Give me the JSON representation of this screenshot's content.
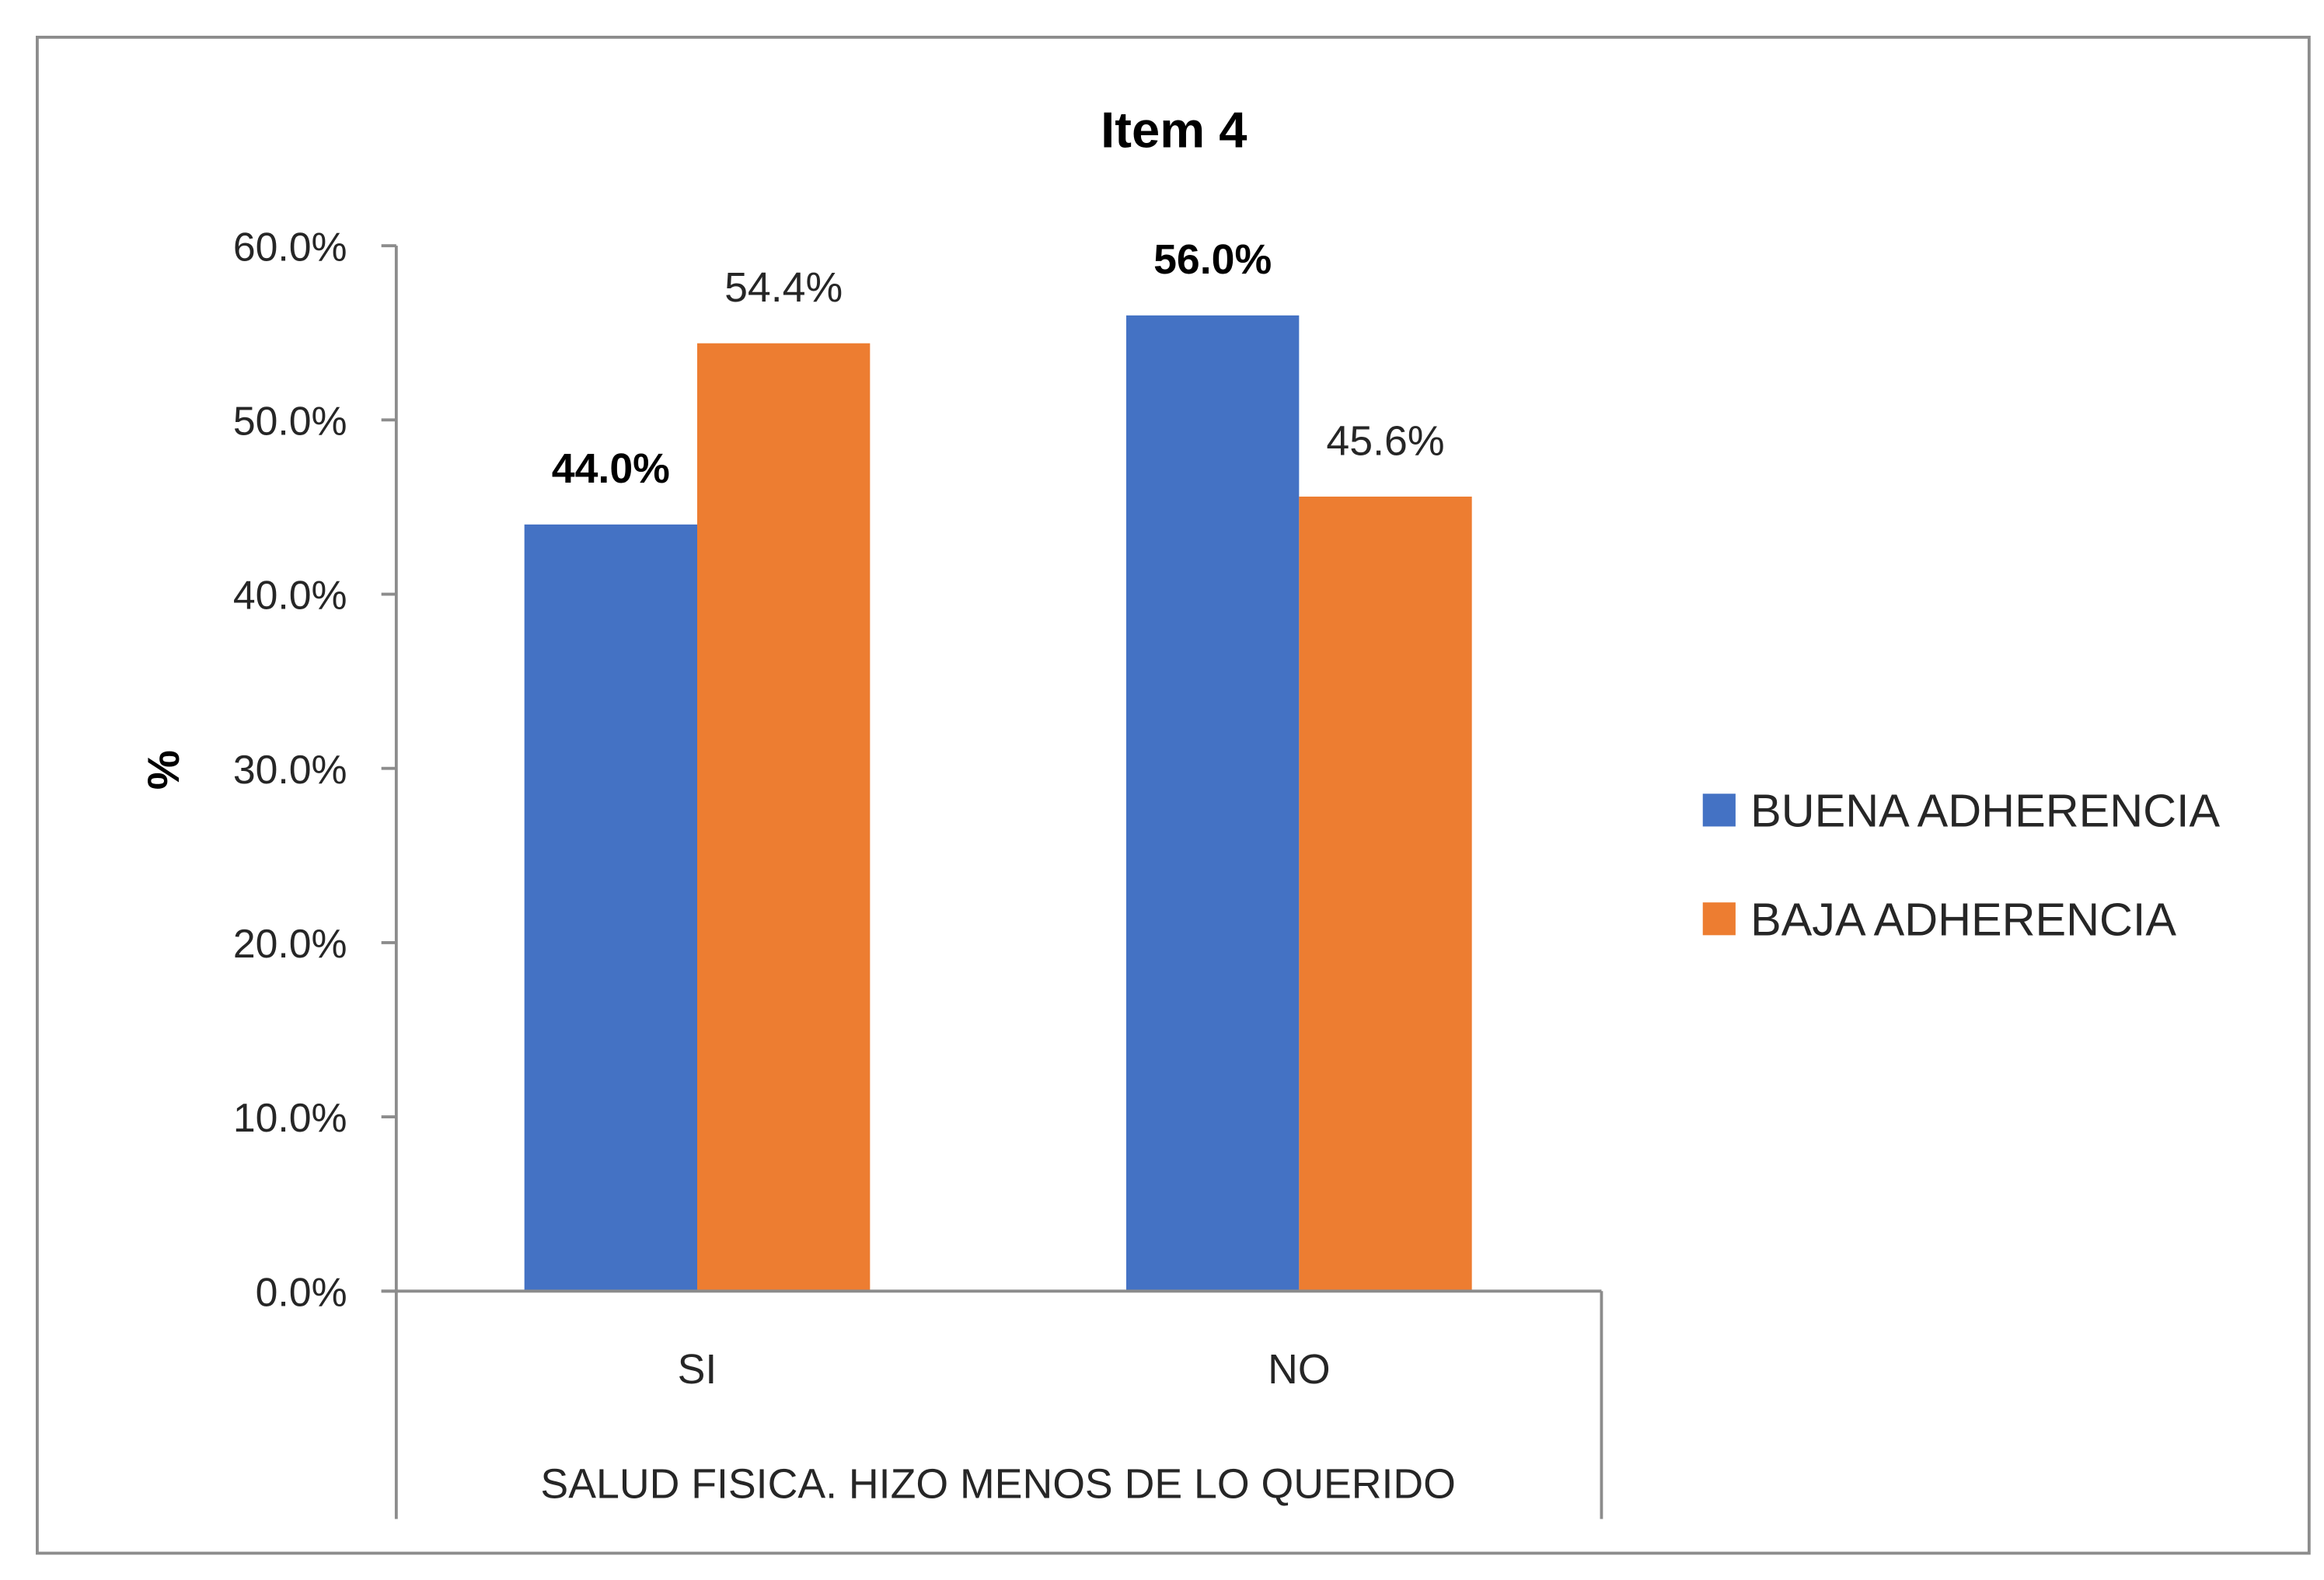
{
  "chart_data": {
    "type": "bar",
    "title": "Item 4",
    "xlabel": "SALUD FISICA. HIZO MENOS DE LO QUERIDO",
    "ylabel": "%",
    "categories": [
      "SI",
      "NO"
    ],
    "ylim": [
      0,
      60
    ],
    "yticks": [
      "0.0%",
      "10.0%",
      "20.0%",
      "30.0%",
      "40.0%",
      "50.0%",
      "60.0%"
    ],
    "grid": false,
    "legend_position": "right",
    "series": [
      {
        "name": "BUENA ADHERENCIA",
        "color": "#4472C4",
        "values": [
          44.0,
          56.0
        ],
        "labels": [
          "44.0%",
          "56.0%"
        ],
        "label_bold": [
          true,
          true
        ]
      },
      {
        "name": "BAJA ADHERENCIA",
        "color": "#ED7D31",
        "values": [
          54.4,
          45.6
        ],
        "labels": [
          "54.4%",
          "45.6%"
        ],
        "label_bold": [
          false,
          false
        ]
      }
    ]
  }
}
